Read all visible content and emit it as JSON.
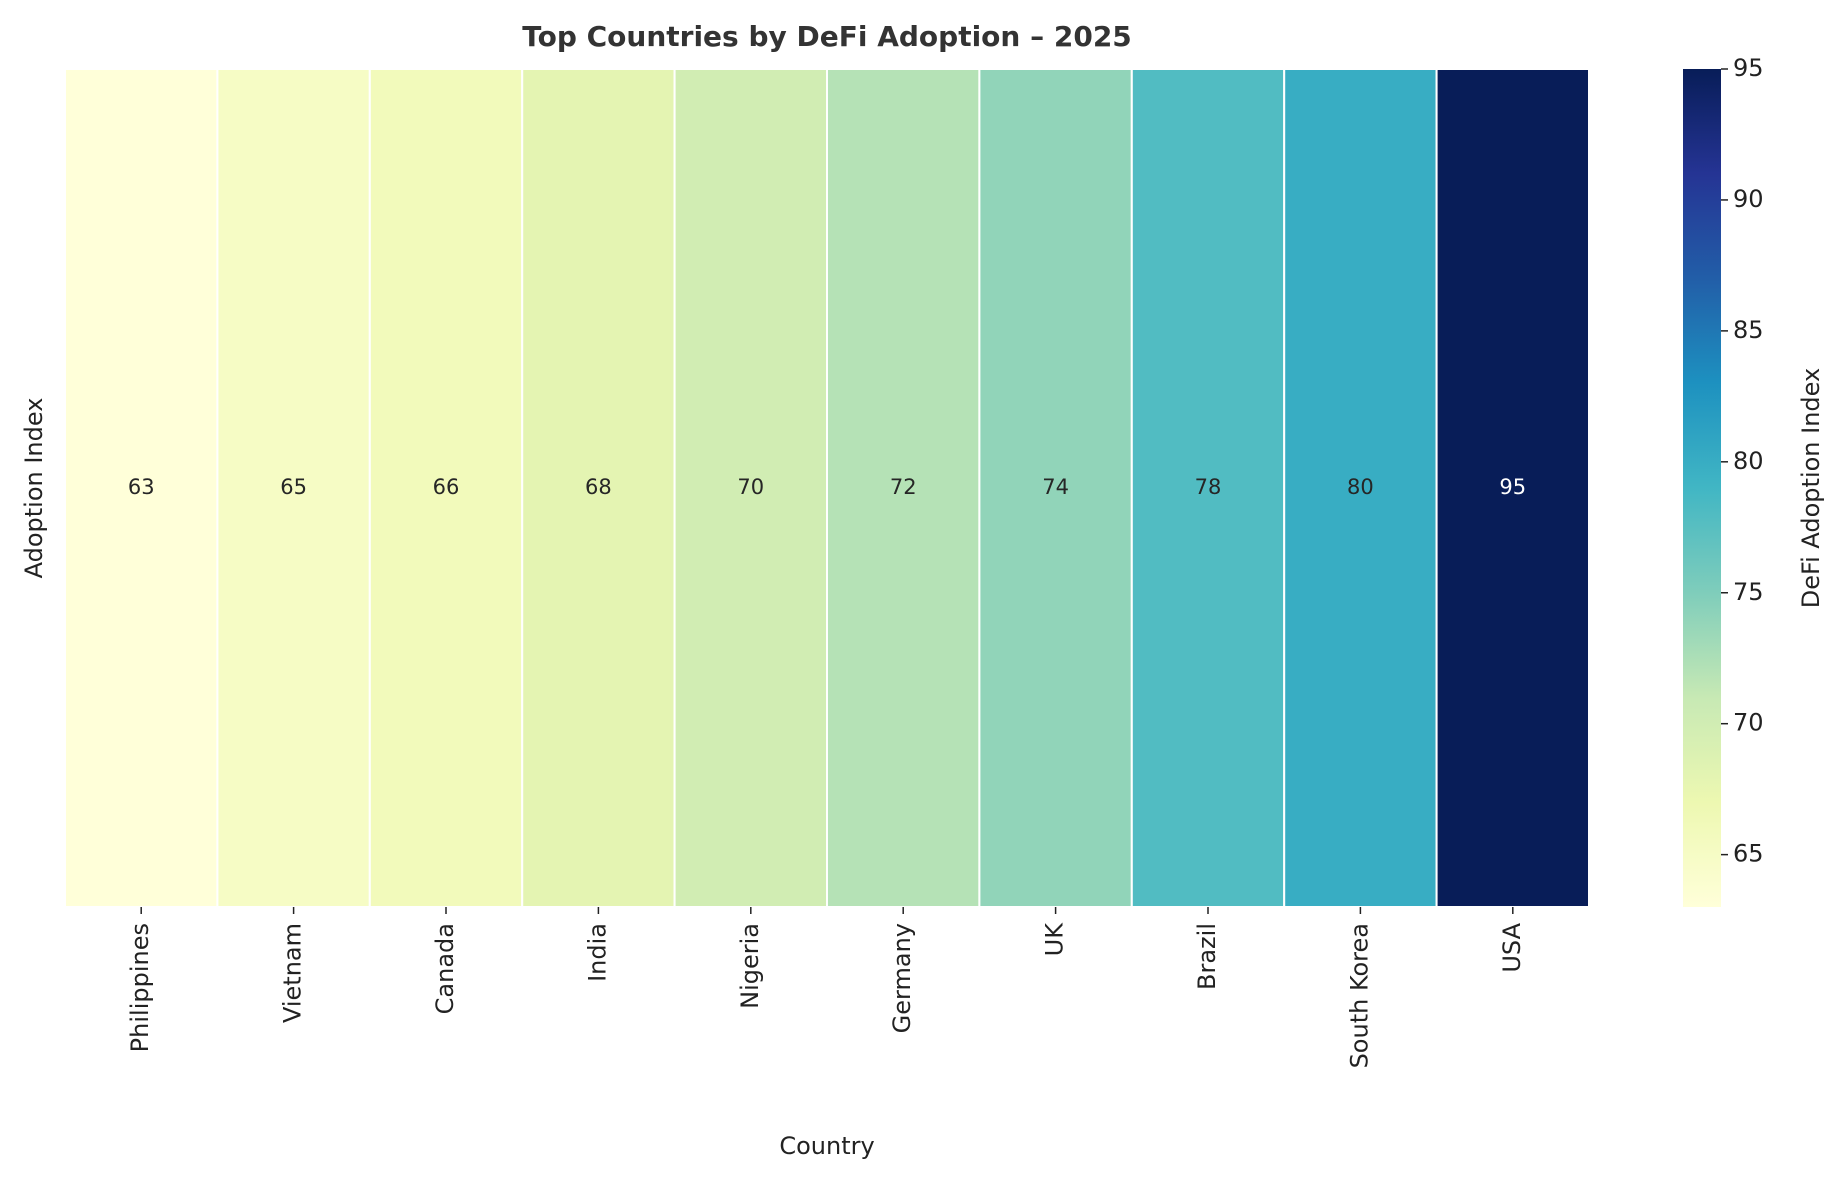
{
  "chart_data": {
    "type": "heatmap",
    "title": "Top Countries by DeFi Adoption – 2025",
    "x_label": "Country",
    "y_label": "Adoption Index",
    "categories": [
      "Philippines",
      "Vietnam",
      "Canada",
      "India",
      "Nigeria",
      "Germany",
      "UK",
      "Brazil",
      "South Korea",
      "USA"
    ],
    "values": [
      63,
      65,
      66,
      68,
      70,
      72,
      74,
      78,
      80,
      95
    ],
    "colormap": [
      "#ffffd9",
      "#edf8b1",
      "#c7e9b4",
      "#7fcdbb",
      "#41b6c4",
      "#1d91c0",
      "#225ea8",
      "#253494",
      "#081d58"
    ],
    "colorbar_label": "DeFi Adoption Index",
    "clim": [
      63,
      95
    ],
    "cticks": [
      65,
      70,
      75,
      80,
      85,
      90,
      95
    ]
  }
}
